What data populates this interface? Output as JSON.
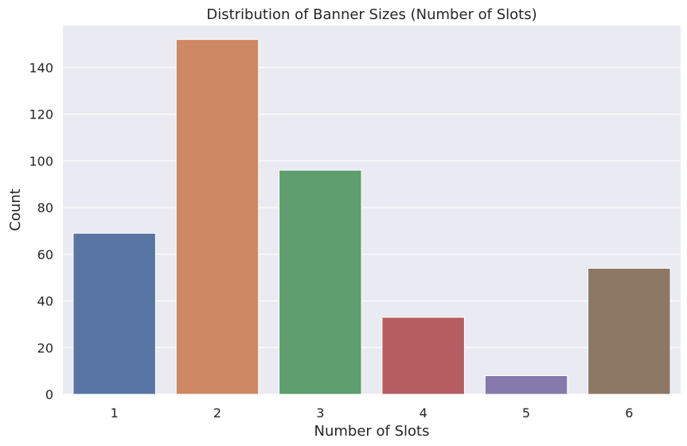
{
  "chart_data": {
    "type": "bar",
    "title": "Distribution of Banner Sizes (Number of Slots)",
    "xlabel": "Number of Slots",
    "ylabel": "Count",
    "categories": [
      "1",
      "2",
      "3",
      "4",
      "5",
      "6"
    ],
    "values": [
      69,
      152,
      96,
      33,
      8,
      54
    ],
    "colors": [
      "#5875a4",
      "#cc8963",
      "#5f9e6e",
      "#b55d60",
      "#857aab",
      "#8d7866"
    ],
    "ylim": [
      0,
      158
    ],
    "yticks": [
      0,
      20,
      40,
      60,
      80,
      100,
      120,
      140
    ],
    "grid": true,
    "background": "#eaeaf2"
  }
}
